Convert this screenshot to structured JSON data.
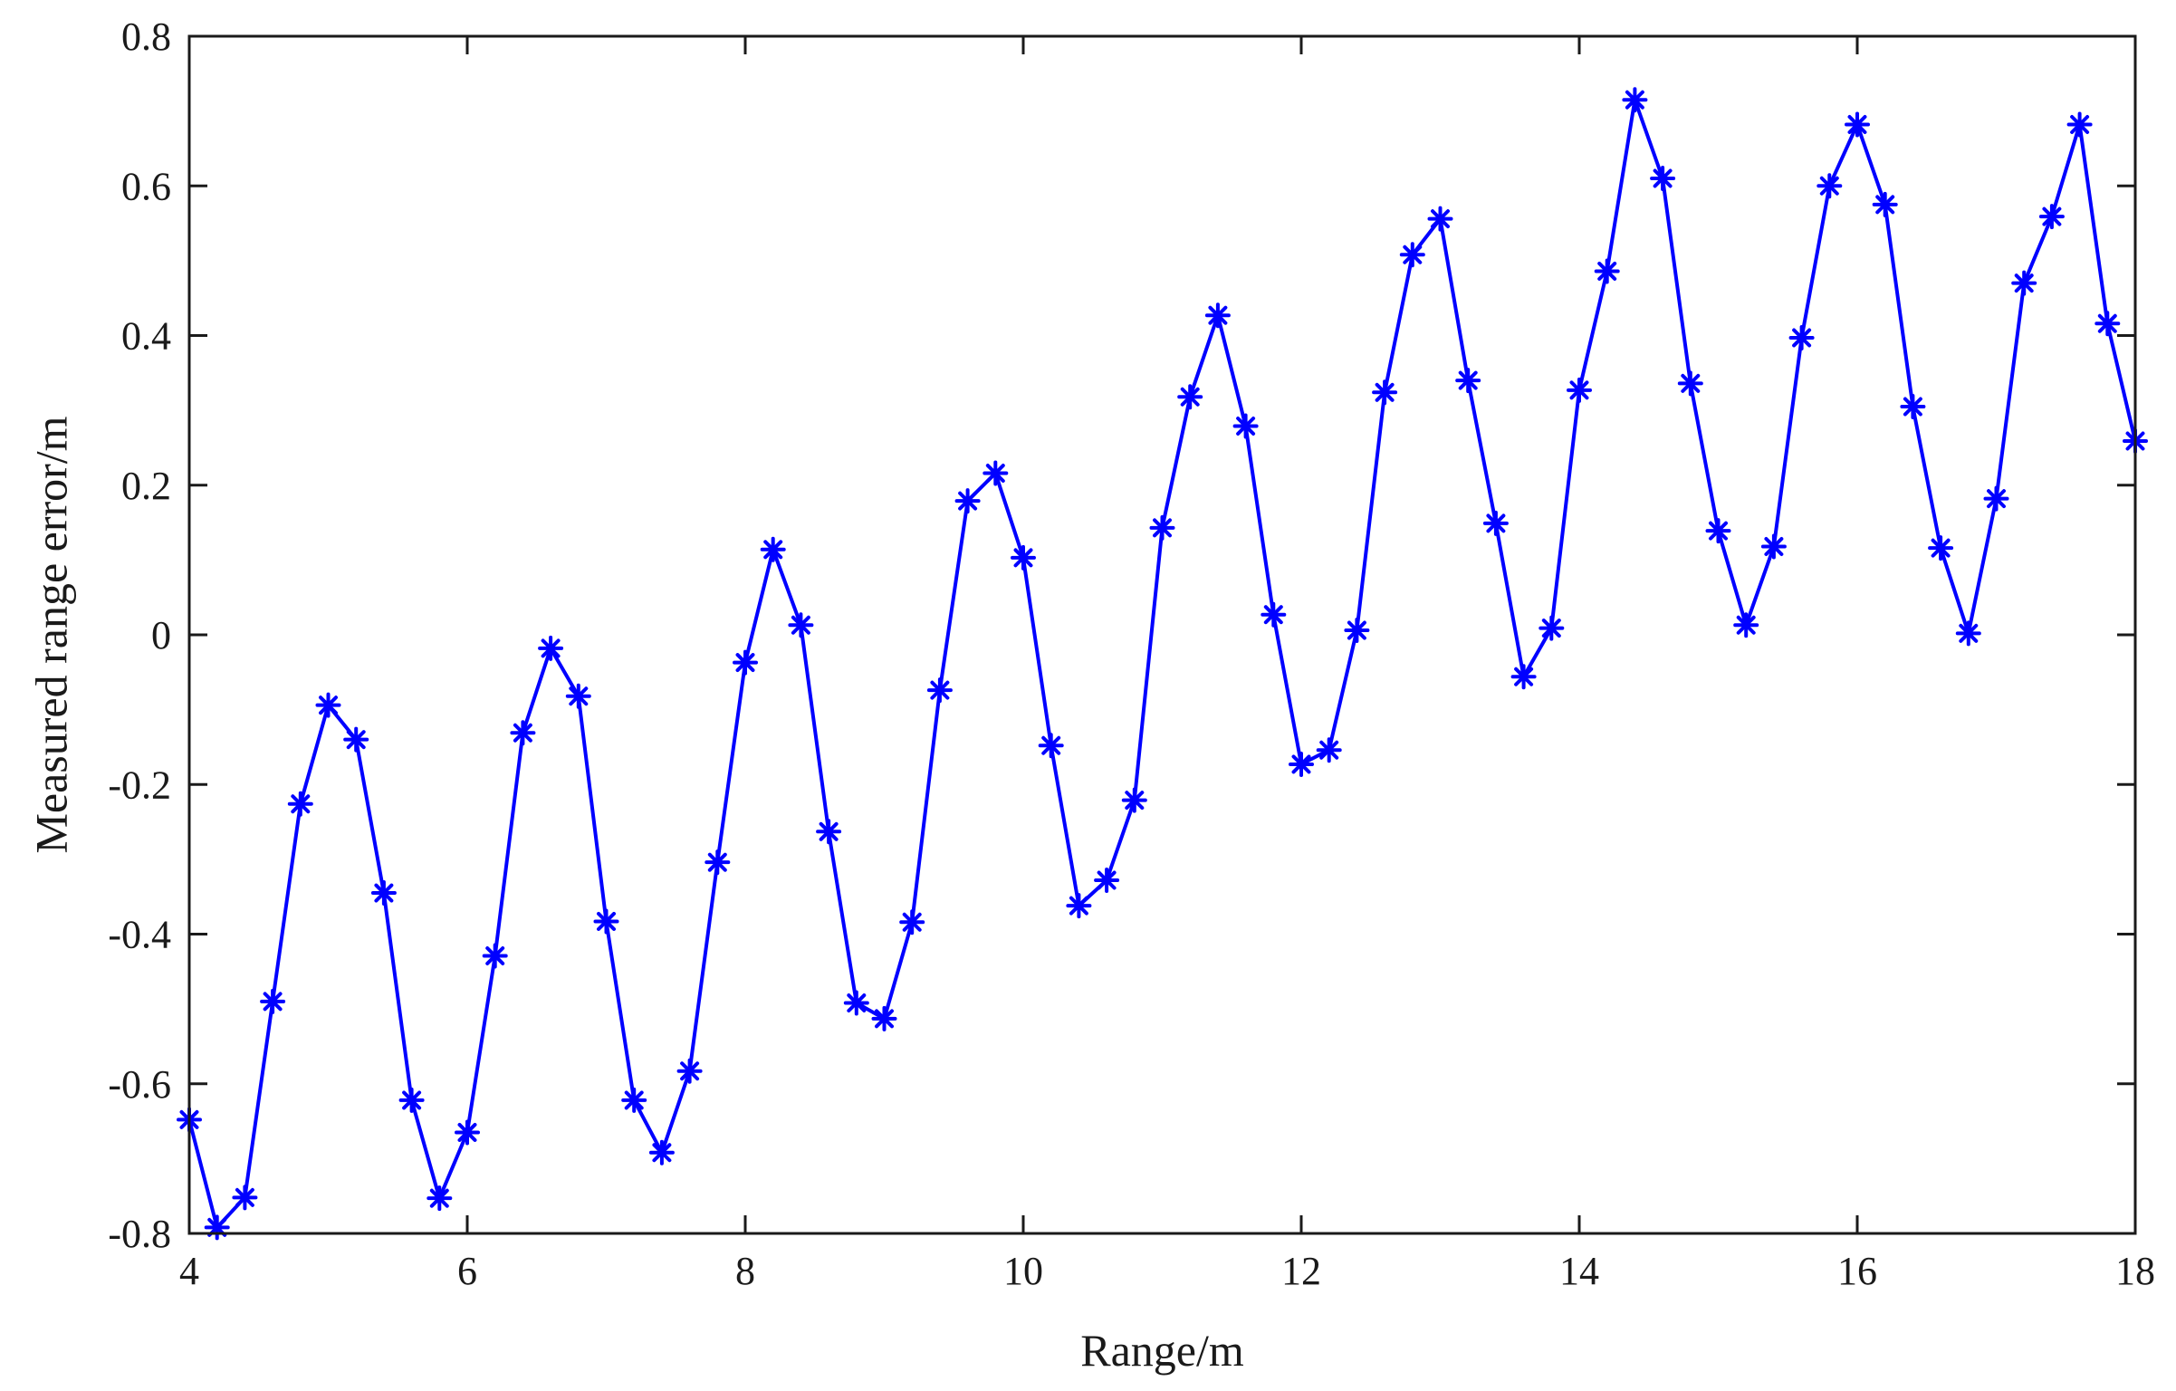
{
  "chart_data": {
    "type": "line",
    "title": "",
    "xlabel": "Range/m",
    "ylabel": "Measured range error/m",
    "xlim": [
      4,
      18
    ],
    "ylim": [
      -0.8,
      0.8
    ],
    "grid": false,
    "marker": "asterisk",
    "line_color": "#0000ff",
    "x_ticks": [
      4,
      6,
      8,
      10,
      12,
      14,
      16,
      18
    ],
    "x_tick_labels": [
      "4",
      "6",
      "8",
      "10",
      "12",
      "14",
      "16",
      "18"
    ],
    "y_ticks": [
      0.8,
      0.6,
      0.4,
      0.2,
      0,
      -0.2,
      -0.4,
      -0.6,
      -0.8
    ],
    "y_tick_labels": [
      "0.8",
      "0.6",
      "0.4",
      "0.2",
      "0",
      "-0.2",
      "-0.4",
      "-0.6",
      "-0.8"
    ],
    "series": [
      {
        "x": [
          4.0,
          4.2,
          4.4,
          4.6,
          4.8,
          5.0,
          5.2,
          5.4,
          5.6,
          5.8,
          6.0,
          6.2,
          6.4,
          6.6,
          6.8,
          7.0,
          7.2,
          7.4,
          7.6,
          7.8,
          8.0,
          8.2,
          8.4,
          8.6,
          8.8,
          9.0,
          9.2,
          9.4,
          9.6,
          9.8,
          10.0,
          10.2,
          10.4,
          10.6,
          10.8,
          11.0,
          11.2,
          11.4,
          11.6,
          11.8,
          12.0,
          12.2,
          12.4,
          12.6,
          12.8,
          13.0,
          13.2,
          13.4,
          13.6,
          13.8,
          14.0,
          14.2,
          14.4,
          14.6,
          14.8,
          15.0,
          15.2,
          15.4,
          15.6,
          15.8,
          16.0,
          16.2,
          16.4,
          16.6,
          16.8,
          17.0,
          17.2,
          17.4,
          17.6,
          17.8,
          18.0
        ],
        "y": [
          -0.648,
          -0.792,
          -0.752,
          -0.49,
          -0.226,
          -0.094,
          -0.14,
          -0.345,
          -0.622,
          -0.753,
          -0.665,
          -0.429,
          -0.131,
          -0.018,
          -0.082,
          -0.383,
          -0.622,
          -0.692,
          -0.583,
          -0.304,
          -0.037,
          0.114,
          0.013,
          -0.263,
          -0.492,
          -0.513,
          -0.384,
          -0.074,
          0.179,
          0.216,
          0.103,
          -0.148,
          -0.362,
          -0.328,
          -0.221,
          0.143,
          0.318,
          0.427,
          0.279,
          0.027,
          -0.173,
          -0.154,
          0.006,
          0.324,
          0.508,
          0.556,
          0.34,
          0.149,
          -0.056,
          0.009,
          0.327,
          0.486,
          0.715,
          0.61,
          0.336,
          0.139,
          0.013,
          0.118,
          0.397,
          0.6,
          0.682,
          0.575,
          0.305,
          0.116,
          0.002,
          0.182,
          0.47,
          0.559,
          0.682,
          0.416,
          0.259
        ]
      }
    ]
  }
}
